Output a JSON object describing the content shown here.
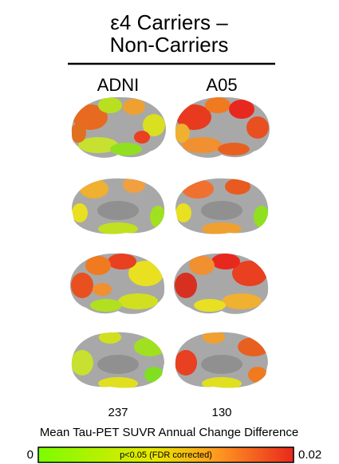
{
  "figure": {
    "title": [
      "ε4 Carriers –",
      "Non-Carriers"
    ],
    "columns": [
      "ADNI",
      "A05"
    ],
    "counts": [
      237,
      130
    ],
    "colorbar": {
      "label": "Mean Tau-PET SUVR Annual Change Difference",
      "min": 0,
      "max": 0.02,
      "note": "p<0.05 (FDR corrected)"
    }
  }
}
